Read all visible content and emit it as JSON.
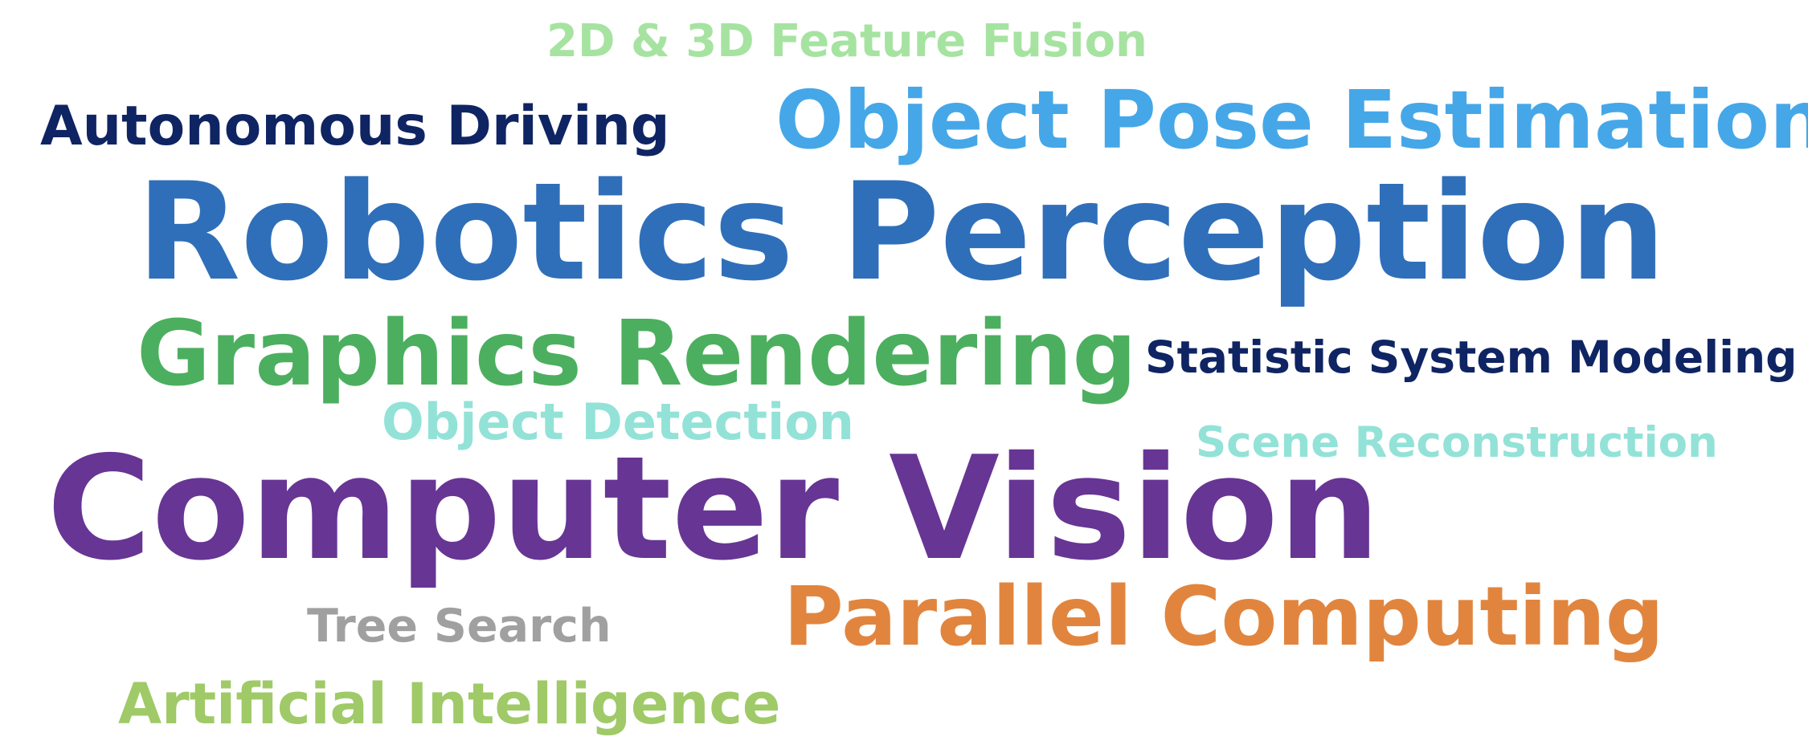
{
  "words": {
    "fusion": {
      "text": "2D & 3D Feature Fusion",
      "color": "#a6e3a1"
    },
    "autonomous": {
      "text": "Autonomous Driving",
      "color": "#0f2463"
    },
    "pose": {
      "text": "Object Pose Estimation",
      "color": "#45a7e8"
    },
    "robotics": {
      "text": "Robotics Perception",
      "color": "#2f6fba"
    },
    "graphics": {
      "text": "Graphics Rendering",
      "color": "#4caf5f"
    },
    "statistic": {
      "text": "Statistic System Modeling",
      "color": "#0f2463"
    },
    "detection": {
      "text": "Object Detection",
      "color": "#93e2d7"
    },
    "scene": {
      "text": "Scene Reconstruction",
      "color": "#93e2d7"
    },
    "vision": {
      "text": "Computer Vision",
      "color": "#673594"
    },
    "parallel": {
      "text": "Parallel Computing",
      "color": "#e1853e"
    },
    "tree": {
      "text": "Tree Search",
      "color": "#a0a0a0"
    },
    "ai": {
      "text": "Artificial Intelligence",
      "color": "#9fca67"
    }
  }
}
